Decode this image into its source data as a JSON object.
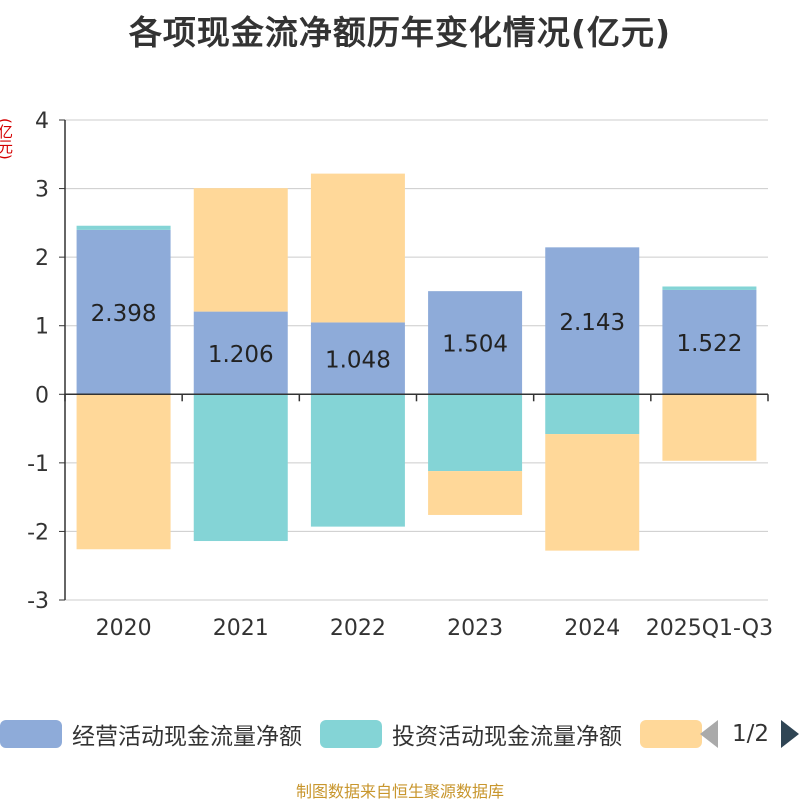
{
  "chart_data": {
    "type": "bar",
    "stacked": true,
    "title": "各项现金流净额历年变化情况(亿元)",
    "ylabel": "(亿元)",
    "ylim": [
      -3,
      4
    ],
    "yticks": [
      4,
      3,
      2,
      1,
      0,
      -1,
      -2,
      -3
    ],
    "categories": [
      "2020",
      "2021",
      "2022",
      "2023",
      "2024",
      "2025Q1-Q3"
    ],
    "series": [
      {
        "name": "经营活动现金流量净额",
        "color": "#8eabd9",
        "values": [
          2.398,
          1.206,
          1.048,
          1.504,
          2.143,
          1.522
        ],
        "labels": [
          "2.398",
          "1.206",
          "1.048",
          "1.504",
          "2.143",
          "1.522"
        ]
      },
      {
        "name": "投资活动现金流量净额",
        "color": "#84d4d6",
        "values": [
          0.06,
          -2.14,
          -1.93,
          -1.12,
          -0.58,
          0.05
        ]
      },
      {
        "name": "",
        "color": "#ffd899",
        "values": [
          -2.26,
          1.8,
          2.17,
          -0.64,
          -1.7,
          -0.97
        ]
      }
    ],
    "legend_position": "bottom",
    "grid": true
  },
  "legend": {
    "items": [
      {
        "label": "经营活动现金流量净额",
        "color": "#8eabd9"
      },
      {
        "label": "投资活动现金流量净额",
        "color": "#84d4d6"
      },
      {
        "label": "",
        "color": "#ffd899"
      }
    ],
    "page": "1/2"
  },
  "source": "制图数据来自恒生聚源数据库"
}
